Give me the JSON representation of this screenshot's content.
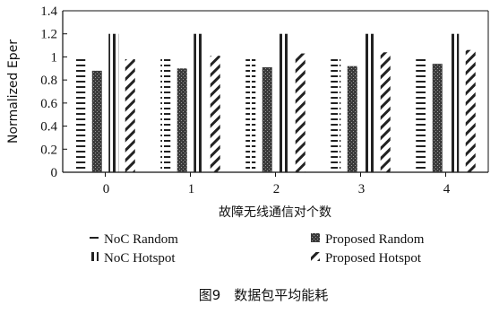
{
  "chart_data": {
    "type": "bar",
    "title": "",
    "xlabel": "故障无线通信对个数",
    "ylabel": "Normalized Eper",
    "categories": [
      "0",
      "1",
      "2",
      "3",
      "4"
    ],
    "ylim": [
      0,
      1.4
    ],
    "yticks": [
      "0",
      "0.2",
      "0.4",
      "0.6",
      "0.8",
      "1",
      "1.2",
      "1.4"
    ],
    "grid": false,
    "legend_position": "bottom",
    "series": [
      {
        "name": "NoC Random",
        "pattern": "horizontal-dashes",
        "values": [
          1.0,
          1.0,
          1.0,
          1.0,
          1.0
        ]
      },
      {
        "name": "Proposed Random",
        "pattern": "checker",
        "values": [
          0.88,
          0.9,
          0.91,
          0.92,
          0.94
        ]
      },
      {
        "name": "NoC Hotspot",
        "pattern": "vertical-stripes",
        "values": [
          1.2,
          1.2,
          1.2,
          1.2,
          1.2
        ]
      },
      {
        "name": "Proposed Hotspot",
        "pattern": "diagonal-dashes",
        "values": [
          0.98,
          1.01,
          1.03,
          1.04,
          1.06
        ]
      }
    ]
  },
  "caption": "图9　数据包平均能耗"
}
